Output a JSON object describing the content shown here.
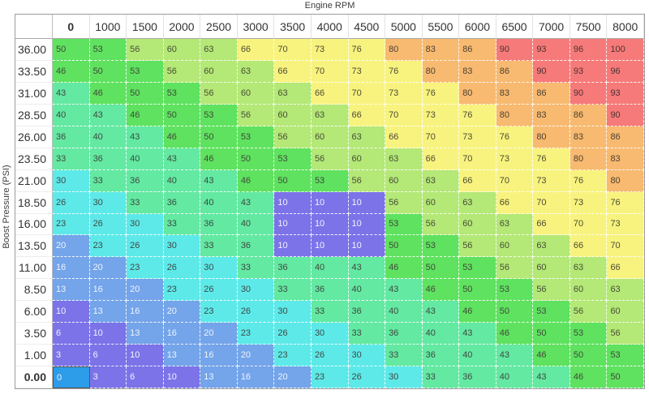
{
  "title": "Engine RPM",
  "y_axis_label": "Boost Pressure (PSI)",
  "chart_data": {
    "type": "heatmap",
    "title": "Engine RPM",
    "xlabel": "Engine RPM",
    "ylabel": "Boost Pressure (PSI)",
    "columns": [
      "0",
      "1000",
      "1500",
      "2000",
      "2500",
      "3000",
      "3500",
      "4000",
      "4500",
      "5000",
      "5500",
      "6000",
      "6500",
      "7000",
      "7500",
      "8000"
    ],
    "rows": [
      "36.00",
      "33.50",
      "31.00",
      "28.50",
      "26.00",
      "23.50",
      "21.00",
      "18.50",
      "16.00",
      "13.50",
      "11.00",
      "8.50",
      "6.00",
      "3.50",
      "1.00",
      "0.00"
    ],
    "values": [
      [
        50,
        53,
        56,
        60,
        63,
        66,
        70,
        73,
        76,
        80,
        83,
        86,
        90,
        93,
        96,
        100
      ],
      [
        46,
        50,
        53,
        56,
        60,
        63,
        66,
        70,
        73,
        76,
        80,
        83,
        86,
        90,
        93,
        96
      ],
      [
        43,
        46,
        50,
        53,
        56,
        60,
        63,
        66,
        70,
        73,
        76,
        80,
        83,
        86,
        90,
        93
      ],
      [
        40,
        43,
        46,
        50,
        53,
        56,
        60,
        63,
        66,
        70,
        73,
        76,
        80,
        83,
        86,
        90
      ],
      [
        36,
        40,
        43,
        46,
        50,
        53,
        56,
        60,
        63,
        66,
        70,
        73,
        76,
        80,
        83,
        86
      ],
      [
        33,
        36,
        40,
        43,
        46,
        50,
        53,
        56,
        60,
        63,
        66,
        70,
        73,
        76,
        80,
        83
      ],
      [
        30,
        33,
        36,
        40,
        43,
        46,
        50,
        53,
        56,
        60,
        63,
        66,
        70,
        73,
        76,
        80
      ],
      [
        26,
        30,
        33,
        36,
        40,
        43,
        10,
        10,
        10,
        56,
        60,
        63,
        66,
        70,
        73,
        76
      ],
      [
        23,
        26,
        30,
        33,
        36,
        40,
        10,
        10,
        10,
        53,
        56,
        60,
        63,
        66,
        70,
        73
      ],
      [
        20,
        23,
        26,
        30,
        33,
        36,
        10,
        10,
        10,
        50,
        53,
        56,
        60,
        63,
        66,
        70
      ],
      [
        16,
        20,
        23,
        26,
        30,
        33,
        36,
        40,
        43,
        46,
        50,
        53,
        56,
        60,
        63,
        66
      ],
      [
        13,
        16,
        20,
        23,
        26,
        30,
        33,
        36,
        40,
        43,
        46,
        50,
        53,
        56,
        60,
        63
      ],
      [
        10,
        13,
        16,
        20,
        23,
        26,
        30,
        33,
        36,
        40,
        43,
        46,
        50,
        53,
        56,
        60
      ],
      [
        6,
        10,
        13,
        16,
        20,
        23,
        26,
        30,
        33,
        36,
        40,
        43,
        46,
        50,
        53,
        56
      ],
      [
        3,
        6,
        10,
        13,
        16,
        20,
        23,
        26,
        30,
        33,
        36,
        40,
        43,
        46,
        50,
        53
      ],
      [
        0,
        3,
        6,
        10,
        13,
        16,
        20,
        23,
        26,
        30,
        33,
        36,
        40,
        43,
        46,
        50
      ]
    ],
    "selected_cell": {
      "row": "0.00",
      "column": "0",
      "value": 0
    },
    "selected_bg": "#2d9ce9",
    "selected_text": "#f2f6ff",
    "color_scale": [
      {
        "name": "purple",
        "max": 10,
        "bg": "#7c73e9",
        "text": "#f2f4ff"
      },
      {
        "name": "blue",
        "max": 20,
        "bg": "#74a4e9",
        "text": "#eef4ff"
      },
      {
        "name": "cyan",
        "max": 30,
        "bg": "#5ee9e9",
        "text": "#3f4a46"
      },
      {
        "name": "aqua-green",
        "max": 43,
        "bg": "#63e9a2",
        "text": "#3f4a42"
      },
      {
        "name": "green",
        "max": 53,
        "bg": "#5fe25f",
        "text": "#3f4a3b"
      },
      {
        "name": "yellow-green",
        "max": 63,
        "bg": "#b4e877",
        "text": "#474f36"
      },
      {
        "name": "yellow",
        "max": 76,
        "bg": "#f8f37e",
        "text": "#4c4c35"
      },
      {
        "name": "orange",
        "max": 86,
        "bg": "#f8ba70",
        "text": "#4c4233"
      },
      {
        "name": "red",
        "max": 100,
        "bg": "#f67a79",
        "text": "#4c3334"
      }
    ]
  }
}
